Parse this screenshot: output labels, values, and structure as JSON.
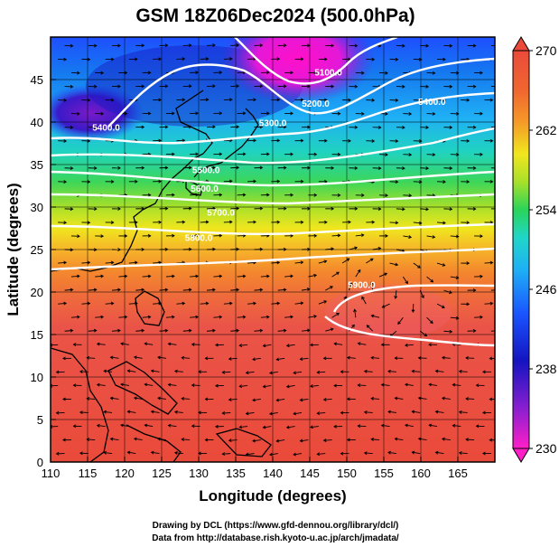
{
  "title": "GSM 18Z06Dec2024 (500.0hPa)",
  "xlabel": "Longitude (degrees)",
  "ylabel": "Latitude  (degrees)",
  "credits": {
    "line1": "Drawing by DCL (https://www.gfd-dennou.org/library/dcl/)",
    "line2": "Data from http://database.rish.kyoto-u.ac.jp/arch/jmadata/"
  },
  "map": {
    "lon_range": [
      110,
      170
    ],
    "lat_range": [
      0,
      50
    ],
    "x_ticks": [
      "110",
      "115",
      "120",
      "125",
      "130",
      "135",
      "140",
      "145",
      "150",
      "155",
      "160",
      "165"
    ],
    "y_ticks": [
      "0",
      "5",
      "10",
      "15",
      "20",
      "25",
      "30",
      "35",
      "40",
      "45"
    ],
    "grid_spacing_deg": 5,
    "field_colored": "temperature (K)",
    "contour_field": "geopotential height (m)",
    "vectors": "wind streamlines (arrows)",
    "contour_labels": [
      {
        "text": "5100.0",
        "lon": 147.5,
        "lat": 45.5
      },
      {
        "text": "5200.0",
        "lon": 145.8,
        "lat": 41.8
      },
      {
        "text": "5300.0",
        "lon": 140.0,
        "lat": 39.5
      },
      {
        "text": "5400.0",
        "lon": 117.5,
        "lat": 39.0
      },
      {
        "text": "5400.0",
        "lon": 161.5,
        "lat": 42.0
      },
      {
        "text": "5500.0",
        "lon": 131.0,
        "lat": 34.0
      },
      {
        "text": "5600.0",
        "lon": 130.8,
        "lat": 31.8
      },
      {
        "text": "5700.0",
        "lon": 133.0,
        "lat": 29.0
      },
      {
        "text": "5800.0",
        "lon": 130.0,
        "lat": 26.0
      },
      {
        "text": "5900.0",
        "lon": 152.0,
        "lat": 20.5
      }
    ]
  },
  "colorbar": {
    "ticks": [
      "270",
      "262",
      "254",
      "246",
      "238",
      "230"
    ],
    "colors": [
      "#ff1493",
      "#9d1fcf",
      "#1515c8",
      "#1a4cff",
      "#1ea3ff",
      "#20d8d0",
      "#2ad45a",
      "#9ae02a",
      "#e8e81a",
      "#f5a623",
      "#f26a2e",
      "#ea4a3a"
    ]
  }
}
